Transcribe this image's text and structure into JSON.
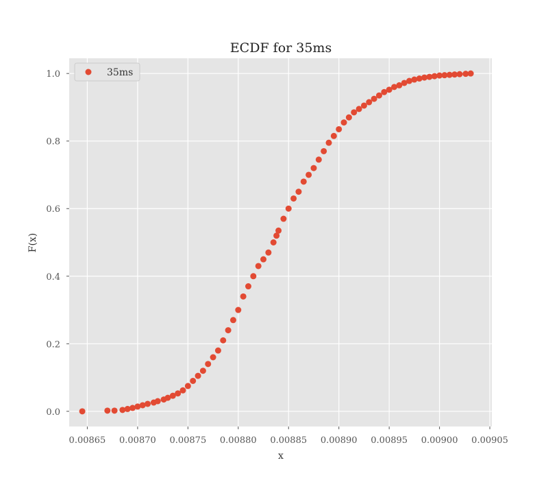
{
  "chart_data": {
    "type": "scatter",
    "title": "ECDF for 35ms",
    "xlabel": "x",
    "ylabel": "F(x)",
    "xlim": [
      0.008632,
      0.009052
    ],
    "ylim": [
      -0.045,
      1.045
    ],
    "x_ticks": [
      0.00865,
      0.0087,
      0.00875,
      0.0088,
      0.00885,
      0.0089,
      0.00895,
      0.009,
      0.00905
    ],
    "x_tick_labels": [
      "0.00865",
      "0.00870",
      "0.00875",
      "0.00880",
      "0.00885",
      "0.00890",
      "0.00895",
      "0.00900",
      "0.00905"
    ],
    "y_ticks": [
      0.0,
      0.2,
      0.4,
      0.6,
      0.8,
      1.0
    ],
    "y_tick_labels": [
      "0.0",
      "0.2",
      "0.4",
      "0.6",
      "0.8",
      "1.0"
    ],
    "grid": true,
    "legend": {
      "position": "top-left"
    },
    "colors": {
      "series": "#e24a33",
      "plot_bg": "#e5e5e5",
      "grid": "#ffffff"
    },
    "series": [
      {
        "name": "35ms",
        "x": [
          0.008645,
          0.00867,
          0.008677,
          0.008685,
          0.00869,
          0.008695,
          0.0087,
          0.008705,
          0.00871,
          0.008716,
          0.00872,
          0.008726,
          0.00873,
          0.008735,
          0.00874,
          0.008745,
          0.00875,
          0.008755,
          0.00876,
          0.008765,
          0.00877,
          0.008775,
          0.00878,
          0.008785,
          0.00879,
          0.008795,
          0.0088,
          0.008805,
          0.00881,
          0.008815,
          0.00882,
          0.008825,
          0.00883,
          0.008835,
          0.008838,
          0.00884,
          0.008845,
          0.00885,
          0.008855,
          0.00886,
          0.008865,
          0.00887,
          0.008875,
          0.00888,
          0.008885,
          0.00889,
          0.008895,
          0.0089,
          0.008905,
          0.00891,
          0.008915,
          0.00892,
          0.008925,
          0.00893,
          0.008935,
          0.00894,
          0.008945,
          0.00895,
          0.008955,
          0.00896,
          0.008965,
          0.00897,
          0.008975,
          0.00898,
          0.008985,
          0.00899,
          0.008995,
          0.009,
          0.009005,
          0.00901,
          0.009015,
          0.00902,
          0.009026,
          0.009031
        ],
        "y": [
          0.0,
          0.002,
          0.002,
          0.004,
          0.007,
          0.01,
          0.014,
          0.018,
          0.022,
          0.026,
          0.03,
          0.035,
          0.04,
          0.046,
          0.053,
          0.062,
          0.075,
          0.09,
          0.105,
          0.12,
          0.14,
          0.16,
          0.18,
          0.21,
          0.24,
          0.27,
          0.3,
          0.34,
          0.37,
          0.4,
          0.43,
          0.45,
          0.47,
          0.5,
          0.52,
          0.535,
          0.57,
          0.6,
          0.63,
          0.65,
          0.68,
          0.7,
          0.72,
          0.745,
          0.77,
          0.795,
          0.815,
          0.835,
          0.855,
          0.87,
          0.885,
          0.895,
          0.905,
          0.915,
          0.925,
          0.935,
          0.945,
          0.952,
          0.96,
          0.965,
          0.972,
          0.978,
          0.982,
          0.985,
          0.988,
          0.99,
          0.992,
          0.994,
          0.995,
          0.996,
          0.997,
          0.998,
          0.999,
          1.0
        ]
      }
    ]
  }
}
